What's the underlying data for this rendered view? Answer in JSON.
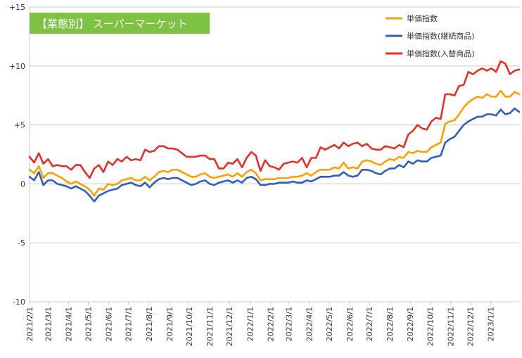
{
  "chart_data": {
    "type": "line",
    "title": "【業態別】 スーパーマーケット",
    "title_box_color": "#7dc242",
    "xlabel": "",
    "ylabel": "",
    "ylim": [
      -10,
      15
    ],
    "yticks": [
      -10,
      -5,
      0,
      5,
      10,
      15
    ],
    "ytick_labels": [
      "-10",
      "-5",
      "0",
      "+5",
      "+10",
      "+15"
    ],
    "grid": "horizontal",
    "legend_position": "top-right",
    "x_tick_labels": [
      "2021/2/1",
      "2021/3/1",
      "2021/4/1",
      "2021/5/1",
      "2021/6/1",
      "2021/7/1",
      "2021/8/1",
      "2021/9/1",
      "2021/10/1",
      "2021/11/1",
      "2021/12/1",
      "2022/1/1",
      "2022/2/1",
      "2022/3/1",
      "2022/4/1",
      "2022/5/1",
      "2022/6/1",
      "2022/7/1",
      "2022/8/1",
      "2022/9/1",
      "2022/10/1",
      "2022/11/1",
      "2022/12/1",
      "2023/1/1"
    ],
    "x_start": "2021-02-01",
    "x_end": "2023-02-13",
    "x": [
      "2021-02-01",
      "2021-02-08",
      "2021-02-15",
      "2021-02-22",
      "2021-03-01",
      "2021-03-08",
      "2021-03-15",
      "2021-03-22",
      "2021-03-29",
      "2021-04-05",
      "2021-04-12",
      "2021-04-19",
      "2021-04-26",
      "2021-05-03",
      "2021-05-10",
      "2021-05-17",
      "2021-05-24",
      "2021-05-31",
      "2021-06-07",
      "2021-06-14",
      "2021-06-21",
      "2021-06-28",
      "2021-07-05",
      "2021-07-12",
      "2021-07-19",
      "2021-07-26",
      "2021-08-02",
      "2021-08-09",
      "2021-08-16",
      "2021-08-23",
      "2021-08-30",
      "2021-09-06",
      "2021-09-13",
      "2021-09-20",
      "2021-09-27",
      "2021-10-04",
      "2021-10-11",
      "2021-10-18",
      "2021-10-25",
      "2021-11-01",
      "2021-11-08",
      "2021-11-15",
      "2021-11-22",
      "2021-11-29",
      "2021-12-06",
      "2021-12-13",
      "2021-12-20",
      "2021-12-27",
      "2022-01-03",
      "2022-01-10",
      "2022-01-17",
      "2022-01-24",
      "2022-01-31",
      "2022-02-07",
      "2022-02-14",
      "2022-02-21",
      "2022-02-28",
      "2022-03-07",
      "2022-03-14",
      "2022-03-21",
      "2022-03-28",
      "2022-04-04",
      "2022-04-11",
      "2022-04-18",
      "2022-04-25",
      "2022-05-02",
      "2022-05-09",
      "2022-05-16",
      "2022-05-23",
      "2022-05-30",
      "2022-06-06",
      "2022-06-13",
      "2022-06-20",
      "2022-06-27",
      "2022-07-04",
      "2022-07-11",
      "2022-07-18",
      "2022-07-25",
      "2022-08-01",
      "2022-08-08",
      "2022-08-15",
      "2022-08-22",
      "2022-08-29",
      "2022-09-05",
      "2022-09-12",
      "2022-09-19",
      "2022-09-26",
      "2022-10-03",
      "2022-10-10",
      "2022-10-17",
      "2022-10-24",
      "2022-10-31",
      "2022-11-07",
      "2022-11-14",
      "2022-11-21",
      "2022-11-28",
      "2022-12-05",
      "2022-12-12",
      "2022-12-19",
      "2022-12-26",
      "2023-01-02",
      "2023-01-09",
      "2023-01-16",
      "2023-01-23",
      "2023-01-30",
      "2023-02-06",
      "2023-02-13"
    ],
    "series": [
      {
        "name": "単価指数",
        "color": "#ffa000",
        "values": [
          1.2,
          0.9,
          1.5,
          0.5,
          0.9,
          0.9,
          0.7,
          0.5,
          0.2,
          0.0,
          0.2,
          0.0,
          -0.2,
          -0.5,
          -1.0,
          -0.4,
          -0.5,
          0.0,
          -0.1,
          0.0,
          0.3,
          0.4,
          0.5,
          0.3,
          0.3,
          0.6,
          0.3,
          0.6,
          1.0,
          1.1,
          1.0,
          1.2,
          1.2,
          1.0,
          0.8,
          0.6,
          0.6,
          0.8,
          0.9,
          0.6,
          0.5,
          0.6,
          0.7,
          0.8,
          0.6,
          0.9,
          0.6,
          1.0,
          1.2,
          0.9,
          0.3,
          0.4,
          0.4,
          0.4,
          0.5,
          0.5,
          0.5,
          0.6,
          0.6,
          0.7,
          0.9,
          0.7,
          1.0,
          1.2,
          1.2,
          1.2,
          1.4,
          1.3,
          1.8,
          1.3,
          1.4,
          1.3,
          1.9,
          2.0,
          1.9,
          1.7,
          1.6,
          1.9,
          2.1,
          2.0,
          2.3,
          2.2,
          2.7,
          2.6,
          2.8,
          2.7,
          2.7,
          3.1,
          3.3,
          3.5,
          5.1,
          5.3,
          5.4,
          5.9,
          6.5,
          6.9,
          7.2,
          7.4,
          7.3,
          7.6,
          7.4,
          7.4,
          7.9,
          7.4,
          7.4,
          7.8,
          7.6
        ]
      },
      {
        "name": "単価指数(継続商品)",
        "color": "#2e5fba",
        "values": [
          0.6,
          0.3,
          1.0,
          -0.1,
          0.3,
          0.3,
          0.0,
          -0.1,
          -0.2,
          -0.4,
          -0.2,
          -0.4,
          -0.6,
          -1.0,
          -1.5,
          -1.0,
          -0.8,
          -0.6,
          -0.5,
          -0.4,
          -0.1,
          0.0,
          0.1,
          -0.1,
          -0.2,
          0.1,
          -0.3,
          0.1,
          0.4,
          0.5,
          0.4,
          0.5,
          0.5,
          0.3,
          0.1,
          -0.1,
          0.0,
          0.2,
          0.3,
          0.0,
          -0.1,
          0.1,
          0.2,
          0.3,
          0.1,
          0.3,
          0.1,
          0.5,
          0.6,
          0.4,
          -0.1,
          -0.1,
          0.0,
          0.0,
          0.1,
          0.1,
          0.1,
          0.2,
          0.1,
          0.1,
          0.3,
          0.2,
          0.4,
          0.6,
          0.6,
          0.6,
          0.7,
          0.7,
          1.0,
          0.7,
          0.6,
          0.7,
          1.2,
          1.2,
          1.1,
          0.9,
          0.8,
          1.1,
          1.3,
          1.3,
          1.6,
          1.4,
          1.9,
          1.7,
          2.0,
          1.9,
          1.9,
          2.2,
          2.3,
          2.4,
          3.5,
          3.8,
          4.0,
          4.5,
          5.0,
          5.3,
          5.5,
          5.7,
          5.7,
          5.9,
          5.9,
          5.8,
          6.3,
          5.9,
          6.0,
          6.4,
          6.1
        ]
      },
      {
        "name": "単価指数(入替商品)",
        "color": "#e0322a",
        "values": [
          2.3,
          1.8,
          2.6,
          1.7,
          2.1,
          1.5,
          1.6,
          1.5,
          1.5,
          1.2,
          1.6,
          1.6,
          1.0,
          0.5,
          1.3,
          1.6,
          1.0,
          1.9,
          1.6,
          2.1,
          1.9,
          2.3,
          2.0,
          2.1,
          2.0,
          2.9,
          2.7,
          2.8,
          3.2,
          3.2,
          3.0,
          3.0,
          2.9,
          2.6,
          2.3,
          2.3,
          2.3,
          2.4,
          2.4,
          2.1,
          2.1,
          1.3,
          1.3,
          1.8,
          1.7,
          2.1,
          1.4,
          2.2,
          2.7,
          2.4,
          1.1,
          2.0,
          1.5,
          1.4,
          1.2,
          1.7,
          1.8,
          1.9,
          1.8,
          2.2,
          1.4,
          2.2,
          2.2,
          3.1,
          2.9,
          3.1,
          3.3,
          3.0,
          3.5,
          3.2,
          3.4,
          3.5,
          3.2,
          3.4,
          3.0,
          2.9,
          2.9,
          3.2,
          3.1,
          3.0,
          3.3,
          3.1,
          4.2,
          4.5,
          5.0,
          4.7,
          4.6,
          5.3,
          5.6,
          5.5,
          7.6,
          7.6,
          7.5,
          8.3,
          8.4,
          9.5,
          9.3,
          9.6,
          9.8,
          9.6,
          9.8,
          9.5,
          10.4,
          10.2,
          9.3,
          9.6,
          9.7
        ]
      }
    ]
  }
}
